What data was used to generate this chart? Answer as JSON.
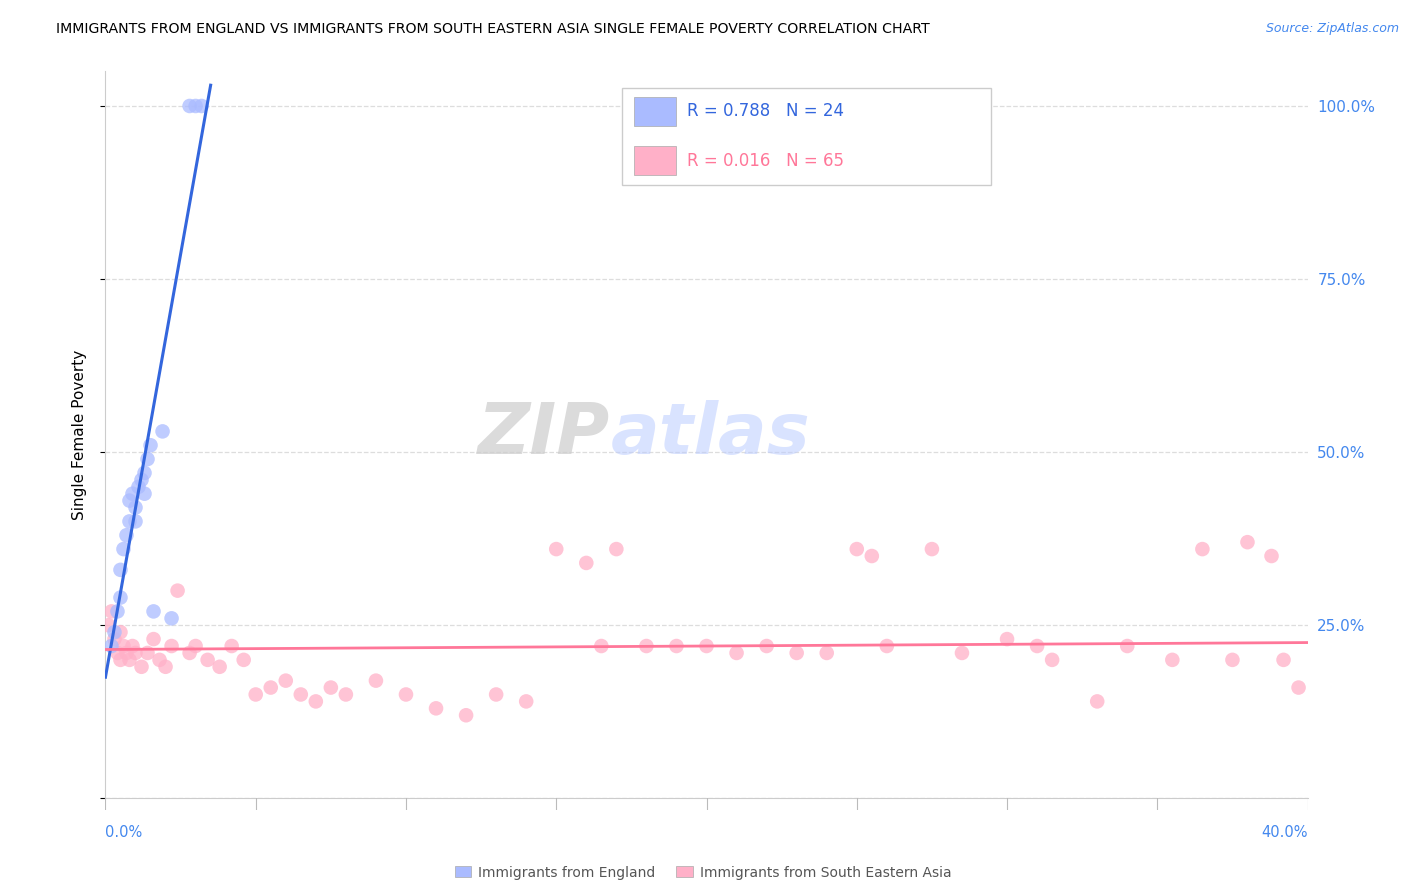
{
  "title": "IMMIGRANTS FROM ENGLAND VS IMMIGRANTS FROM SOUTH EASTERN ASIA SINGLE FEMALE POVERTY CORRELATION CHART",
  "source": "Source: ZipAtlas.com",
  "ylabel": "Single Female Poverty",
  "xlim": [
    0.0,
    0.4
  ],
  "ylim": [
    0.0,
    1.05
  ],
  "yticks": [
    0.0,
    0.25,
    0.5,
    0.75,
    1.0
  ],
  "ytick_labels_right": [
    "",
    "25.0%",
    "50.0%",
    "75.0%",
    "100.0%"
  ],
  "R_england": 0.788,
  "N_england": 24,
  "R_sea": 0.016,
  "N_sea": 65,
  "color_england": "#AABBFF",
  "color_sea": "#FFB0C8",
  "line_color_england": "#3366DD",
  "line_color_sea": "#FF7799",
  "england_x": [
    0.002,
    0.003,
    0.004,
    0.005,
    0.005,
    0.006,
    0.007,
    0.008,
    0.008,
    0.009,
    0.01,
    0.01,
    0.011,
    0.012,
    0.013,
    0.013,
    0.014,
    0.015,
    0.016,
    0.019,
    0.022,
    0.028,
    0.03,
    0.032
  ],
  "england_y": [
    0.22,
    0.24,
    0.27,
    0.29,
    0.33,
    0.36,
    0.38,
    0.4,
    0.43,
    0.44,
    0.4,
    0.42,
    0.45,
    0.46,
    0.44,
    0.47,
    0.49,
    0.51,
    0.27,
    0.53,
    0.26,
    1.0,
    1.0,
    1.0
  ],
  "sea_x": [
    0.001,
    0.002,
    0.003,
    0.004,
    0.005,
    0.005,
    0.006,
    0.007,
    0.008,
    0.009,
    0.01,
    0.012,
    0.014,
    0.016,
    0.018,
    0.02,
    0.022,
    0.024,
    0.028,
    0.03,
    0.034,
    0.038,
    0.042,
    0.046,
    0.05,
    0.055,
    0.06,
    0.065,
    0.07,
    0.075,
    0.08,
    0.09,
    0.1,
    0.11,
    0.12,
    0.13,
    0.14,
    0.15,
    0.16,
    0.165,
    0.17,
    0.18,
    0.19,
    0.2,
    0.21,
    0.22,
    0.23,
    0.24,
    0.25,
    0.255,
    0.26,
    0.275,
    0.285,
    0.3,
    0.31,
    0.315,
    0.33,
    0.34,
    0.355,
    0.365,
    0.375,
    0.38,
    0.388,
    0.392,
    0.397
  ],
  "sea_y": [
    0.25,
    0.27,
    0.23,
    0.21,
    0.2,
    0.24,
    0.22,
    0.21,
    0.2,
    0.22,
    0.21,
    0.19,
    0.21,
    0.23,
    0.2,
    0.19,
    0.22,
    0.3,
    0.21,
    0.22,
    0.2,
    0.19,
    0.22,
    0.2,
    0.15,
    0.16,
    0.17,
    0.15,
    0.14,
    0.16,
    0.15,
    0.17,
    0.15,
    0.13,
    0.12,
    0.15,
    0.14,
    0.36,
    0.34,
    0.22,
    0.36,
    0.22,
    0.22,
    0.22,
    0.21,
    0.22,
    0.21,
    0.21,
    0.36,
    0.35,
    0.22,
    0.36,
    0.21,
    0.23,
    0.22,
    0.2,
    0.14,
    0.22,
    0.2,
    0.36,
    0.2,
    0.37,
    0.35,
    0.2,
    0.16
  ],
  "eng_line_x": [
    0.0,
    0.035
  ],
  "eng_line_y": [
    0.175,
    1.03
  ],
  "sea_line_x": [
    0.0,
    0.4
  ],
  "sea_line_y": [
    0.215,
    0.225
  ]
}
